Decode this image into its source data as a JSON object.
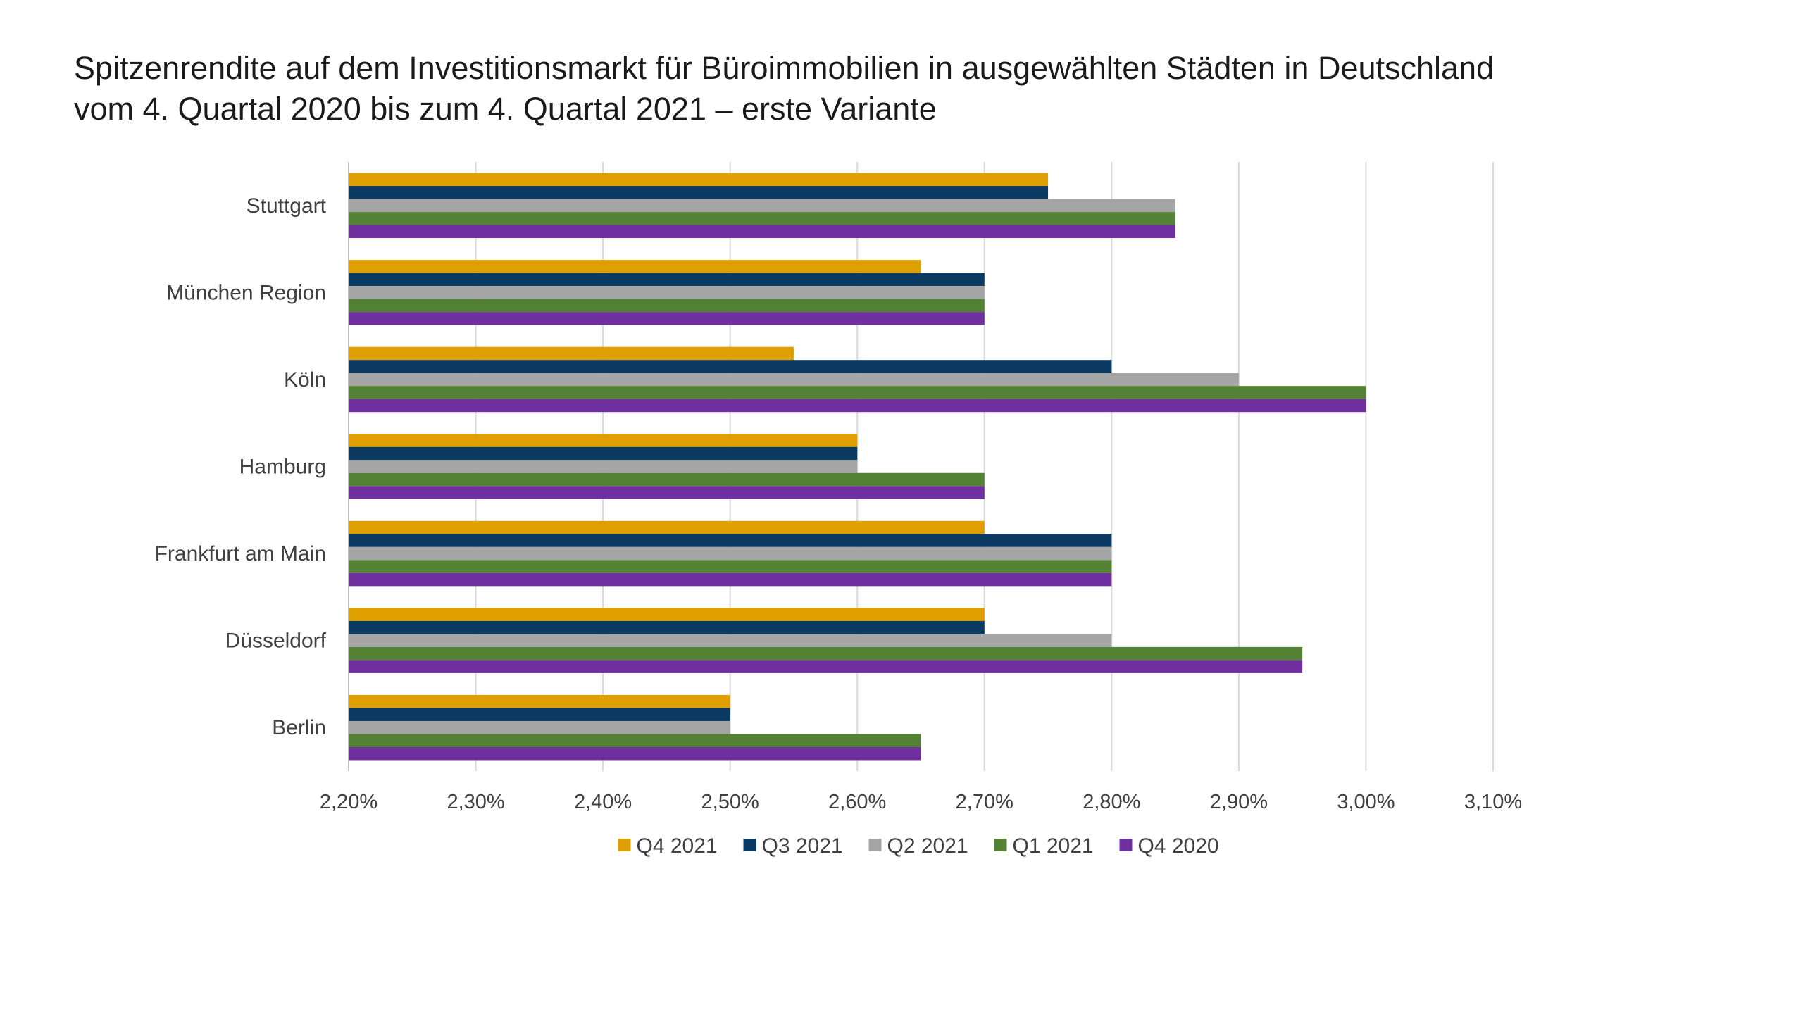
{
  "title_line1": "Spitzenrendite auf dem Investitionsmarkt für Büroimmobilien in ausgewählten Städten in Deutschland",
  "title_line2": "vom 4. Quartal 2020 bis zum 4. Quartal 2021 – erste Variante",
  "chart_data": {
    "type": "bar",
    "orientation": "horizontal",
    "title": "Spitzenrendite auf dem Investitionsmarkt für Büroimmobilien in ausgewählten Städten in Deutschland vom 4. Quartal 2020 bis zum 4. Quartal 2021 – erste Variante",
    "categories": [
      "Stuttgart",
      "München Region",
      "Köln",
      "Hamburg",
      "Frankfurt am Main",
      "Düsseldorf",
      "Berlin"
    ],
    "series": [
      {
        "name": "Q4 2021",
        "color": "#E09F00",
        "values": [
          2.75,
          2.65,
          2.55,
          2.6,
          2.7,
          2.7,
          2.5
        ]
      },
      {
        "name": "Q3 2021",
        "color": "#0B3A63",
        "values": [
          2.75,
          2.7,
          2.8,
          2.6,
          2.8,
          2.7,
          2.5
        ]
      },
      {
        "name": "Q2 2021",
        "color": "#A5A5A5",
        "values": [
          2.85,
          2.7,
          2.9,
          2.6,
          2.8,
          2.8,
          2.5
        ]
      },
      {
        "name": "Q1 2021",
        "color": "#548235",
        "values": [
          2.85,
          2.7,
          3.0,
          2.7,
          2.8,
          2.95,
          2.65
        ]
      },
      {
        "name": "Q4 2020",
        "color": "#7030A0",
        "values": [
          2.85,
          2.7,
          3.0,
          2.7,
          2.8,
          2.95,
          2.65
        ]
      }
    ],
    "xlim": [
      2.2,
      3.1
    ],
    "x_ticks": [
      2.2,
      2.3,
      2.4,
      2.5,
      2.6,
      2.7,
      2.8,
      2.9,
      3.0,
      3.1
    ],
    "x_tick_labels": [
      "2,20%",
      "2,30%",
      "2,40%",
      "2,50%",
      "2,60%",
      "2,70%",
      "2,80%",
      "2,90%",
      "3,00%",
      "3,10%"
    ],
    "grid": true,
    "legend_position": "bottom"
  }
}
